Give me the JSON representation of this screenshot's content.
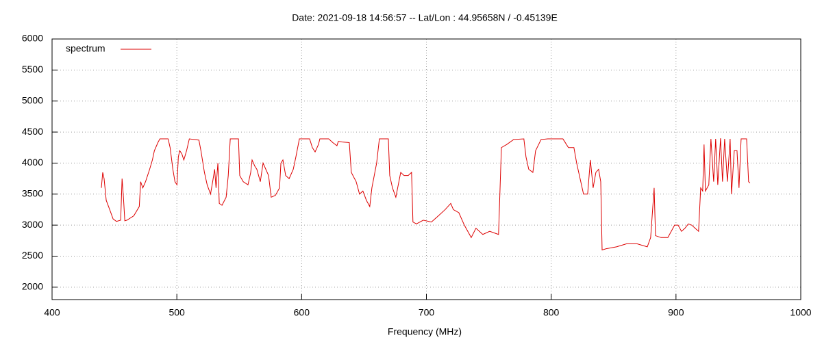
{
  "chart_data": {
    "type": "line",
    "title": "Date: 2021-09-18 14:56:57  --  Lat/Lon : 44.95658N / -0.45139E",
    "x_label": "Frequency (MHz)",
    "xlim": [
      400,
      1000
    ],
    "xticks": [
      400,
      500,
      600,
      700,
      800,
      900,
      1000
    ],
    "ylim": [
      1800,
      6000
    ],
    "yticks": [
      2000,
      2500,
      3000,
      3500,
      4000,
      4500,
      5000,
      5500,
      6000
    ],
    "grid": true,
    "legend": "upper-left",
    "x": [
      439.5,
      440.6,
      441.7,
      443.4,
      446.2,
      448.9,
      451.6,
      455,
      456.1,
      457.2,
      458.3,
      460,
      465.5,
      469.9,
      471,
      472.7,
      474.9,
      478.2,
      480.4,
      482,
      484.8,
      486.4,
      493,
      494.6,
      496.8,
      498.5,
      500.1,
      501.2,
      502.3,
      504,
      505.6,
      507.8,
      510,
      517.7,
      519.3,
      522.1,
      524.3,
      527,
      528.7,
      530.3,
      531.4,
      532.9,
      534,
      536.2,
      539.5,
      541.2,
      542.8,
      549.4,
      550.4,
      553.2,
      557,
      559.2,
      560.3,
      562.5,
      564.1,
      566.9,
      569.1,
      571.3,
      573.5,
      575.6,
      579,
      582.3,
      583.4,
      585,
      587.2,
      590,
      593.3,
      595.4,
      598.2,
      606.4,
      608.6,
      610.8,
      613.5,
      614.6,
      621.7,
      625,
      628.3,
      629.4,
      632.7,
      638.2,
      639.8,
      643.7,
      646.4,
      649.1,
      651.9,
      654.6,
      656.3,
      660.1,
      662.3,
      669.5,
      670.6,
      672.8,
      675.5,
      679.4,
      682.1,
      685.4,
      688.1,
      689.2,
      692,
      697.5,
      704,
      709.6,
      715,
      719.5,
      721.6,
      726,
      730.4,
      735.9,
      739.7,
      745.2,
      750.7,
      757.8,
      760.1,
      764.4,
      769.9,
      778.1,
      779.8,
      782,
      785.3,
      787.5,
      791.9,
      797.3,
      809.4,
      813.8,
      818.2,
      820.4,
      823.7,
      825.9,
      829.2,
      831.4,
      833.6,
      835.8,
      838,
      839.7,
      840.8,
      844.1,
      852.3,
      860.5,
      868.7,
      877,
      879.7,
      882.5,
      883.6,
      888,
      893.5,
      898.9,
      901.7,
      904.4,
      907.2,
      909.9,
      912.6,
      918.1,
      919.8,
      921.4,
      922.5,
      923.6,
      926.3,
      928,
      930.2,
      931.8,
      933.5,
      935.7,
      937.3,
      939,
      941.2,
      943.4,
      944.5,
      946.7,
      948.9,
      950.5,
      952.2,
      956.6,
      958.2,
      959.3
    ],
    "series": [
      {
        "name": "spectrum",
        "color": "#dd0000",
        "values": [
          3600,
          3850,
          3750,
          3400,
          3250,
          3100,
          3060,
          3080,
          3750,
          3450,
          3070,
          3080,
          3150,
          3300,
          3700,
          3600,
          3700,
          3900,
          4050,
          4200,
          4330,
          4390,
          4390,
          4250,
          3900,
          3700,
          3650,
          4100,
          4200,
          4150,
          4050,
          4200,
          4390,
          4370,
          4200,
          3850,
          3650,
          3500,
          3700,
          3900,
          3600,
          4000,
          3350,
          3320,
          3450,
          3800,
          4390,
          4390,
          3800,
          3700,
          3650,
          3850,
          4050,
          3950,
          3900,
          3700,
          4000,
          3900,
          3800,
          3450,
          3480,
          3600,
          4000,
          4050,
          3800,
          3750,
          3900,
          4100,
          4390,
          4390,
          4250,
          4180,
          4300,
          4390,
          4390,
          4330,
          4280,
          4350,
          4340,
          4330,
          3850,
          3700,
          3500,
          3550,
          3400,
          3300,
          3600,
          4000,
          4390,
          4390,
          3800,
          3600,
          3450,
          3850,
          3800,
          3800,
          3850,
          3050,
          3020,
          3080,
          3050,
          3150,
          3250,
          3350,
          3250,
          3200,
          3000,
          2800,
          2950,
          2850,
          2900,
          2850,
          4250,
          4300,
          4380,
          4390,
          4100,
          3900,
          3850,
          4200,
          4380,
          4390,
          4390,
          4250,
          4250,
          4000,
          3700,
          3500,
          3500,
          4050,
          3600,
          3850,
          3900,
          3700,
          2600,
          2620,
          2650,
          2700,
          2700,
          2650,
          2800,
          3600,
          2830,
          2800,
          2800,
          3000,
          3000,
          2900,
          2950,
          3020,
          3000,
          2900,
          3600,
          3550,
          4300,
          3550,
          3650,
          4390,
          3700,
          4390,
          3650,
          4400,
          3700,
          4390,
          3700,
          4390,
          3500,
          4200,
          4200,
          3600,
          4390,
          4390,
          3700,
          3680
        ]
      }
    ]
  }
}
